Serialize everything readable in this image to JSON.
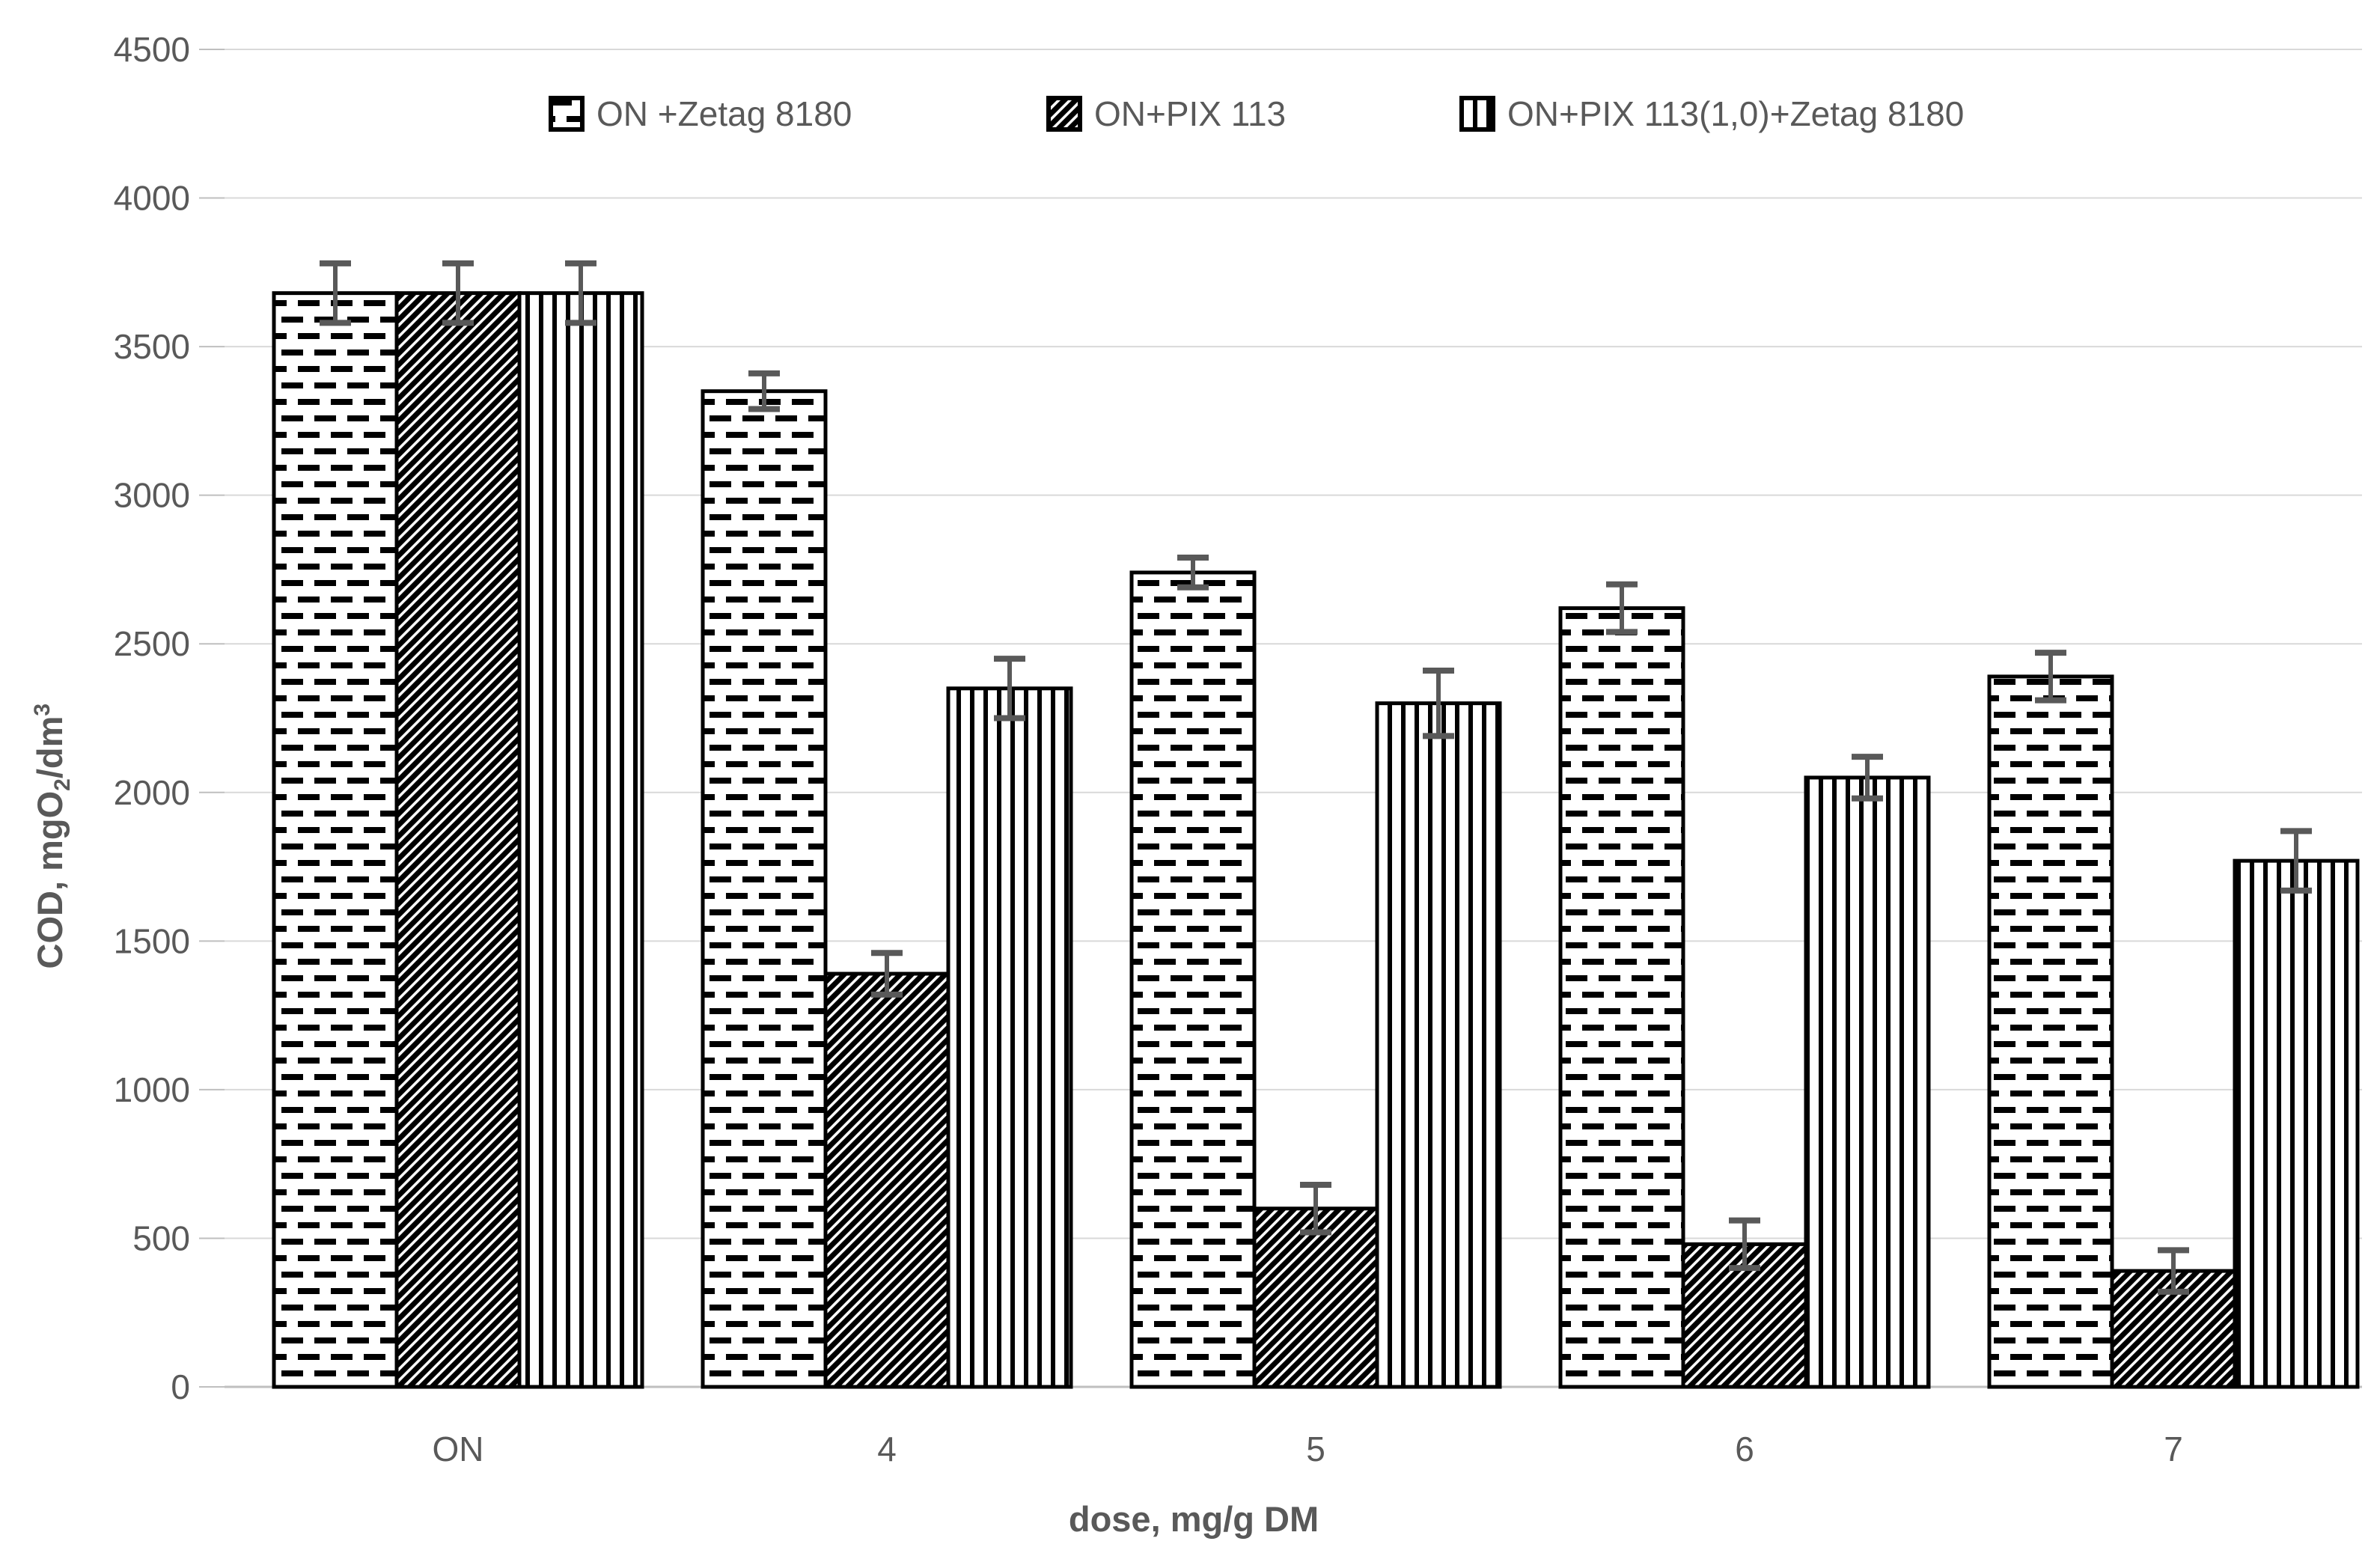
{
  "chart_data": {
    "type": "bar",
    "title": "",
    "categories": [
      "ON",
      "4",
      "5",
      "6",
      "7"
    ],
    "series": [
      {
        "name": "ON +Zetag 8180",
        "pattern": "dashed",
        "values": [
          3680,
          3350,
          2740,
          2620,
          2390
        ],
        "errors": [
          100,
          60,
          50,
          80,
          80
        ]
      },
      {
        "name": "ON+PIX 113",
        "pattern": "diagonal",
        "values": [
          3680,
          1390,
          600,
          480,
          390
        ],
        "errors": [
          100,
          70,
          80,
          80,
          70
        ]
      },
      {
        "name": "ON+PIX 113(1,0)+Zetag 8180",
        "pattern": "vertical",
        "values": [
          3680,
          2350,
          2300,
          2050,
          1770
        ],
        "errors": [
          100,
          100,
          110,
          70,
          100
        ]
      }
    ],
    "xlabel": "dose, mg/g DM",
    "ylabel": "COD, mgO2/dm3",
    "ylabel_parts": {
      "pre": "COD, mgO",
      "sub": "2",
      "mid": "/dm",
      "sup": "3"
    },
    "ylim": [
      0,
      4500
    ],
    "ytick_step": 500,
    "yticks": [
      "0",
      "500",
      "1000",
      "1500",
      "2000",
      "2500",
      "3000",
      "3500",
      "4000",
      "4500"
    ],
    "grid": true,
    "legend_position": "top",
    "error_bars": true
  },
  "colors": {
    "text": "#595959",
    "gridline": "#d9d9d9",
    "axis_line": "#bfbfbf",
    "error_bar": "#595959",
    "bar_border": "#000000",
    "background": "#ffffff"
  }
}
